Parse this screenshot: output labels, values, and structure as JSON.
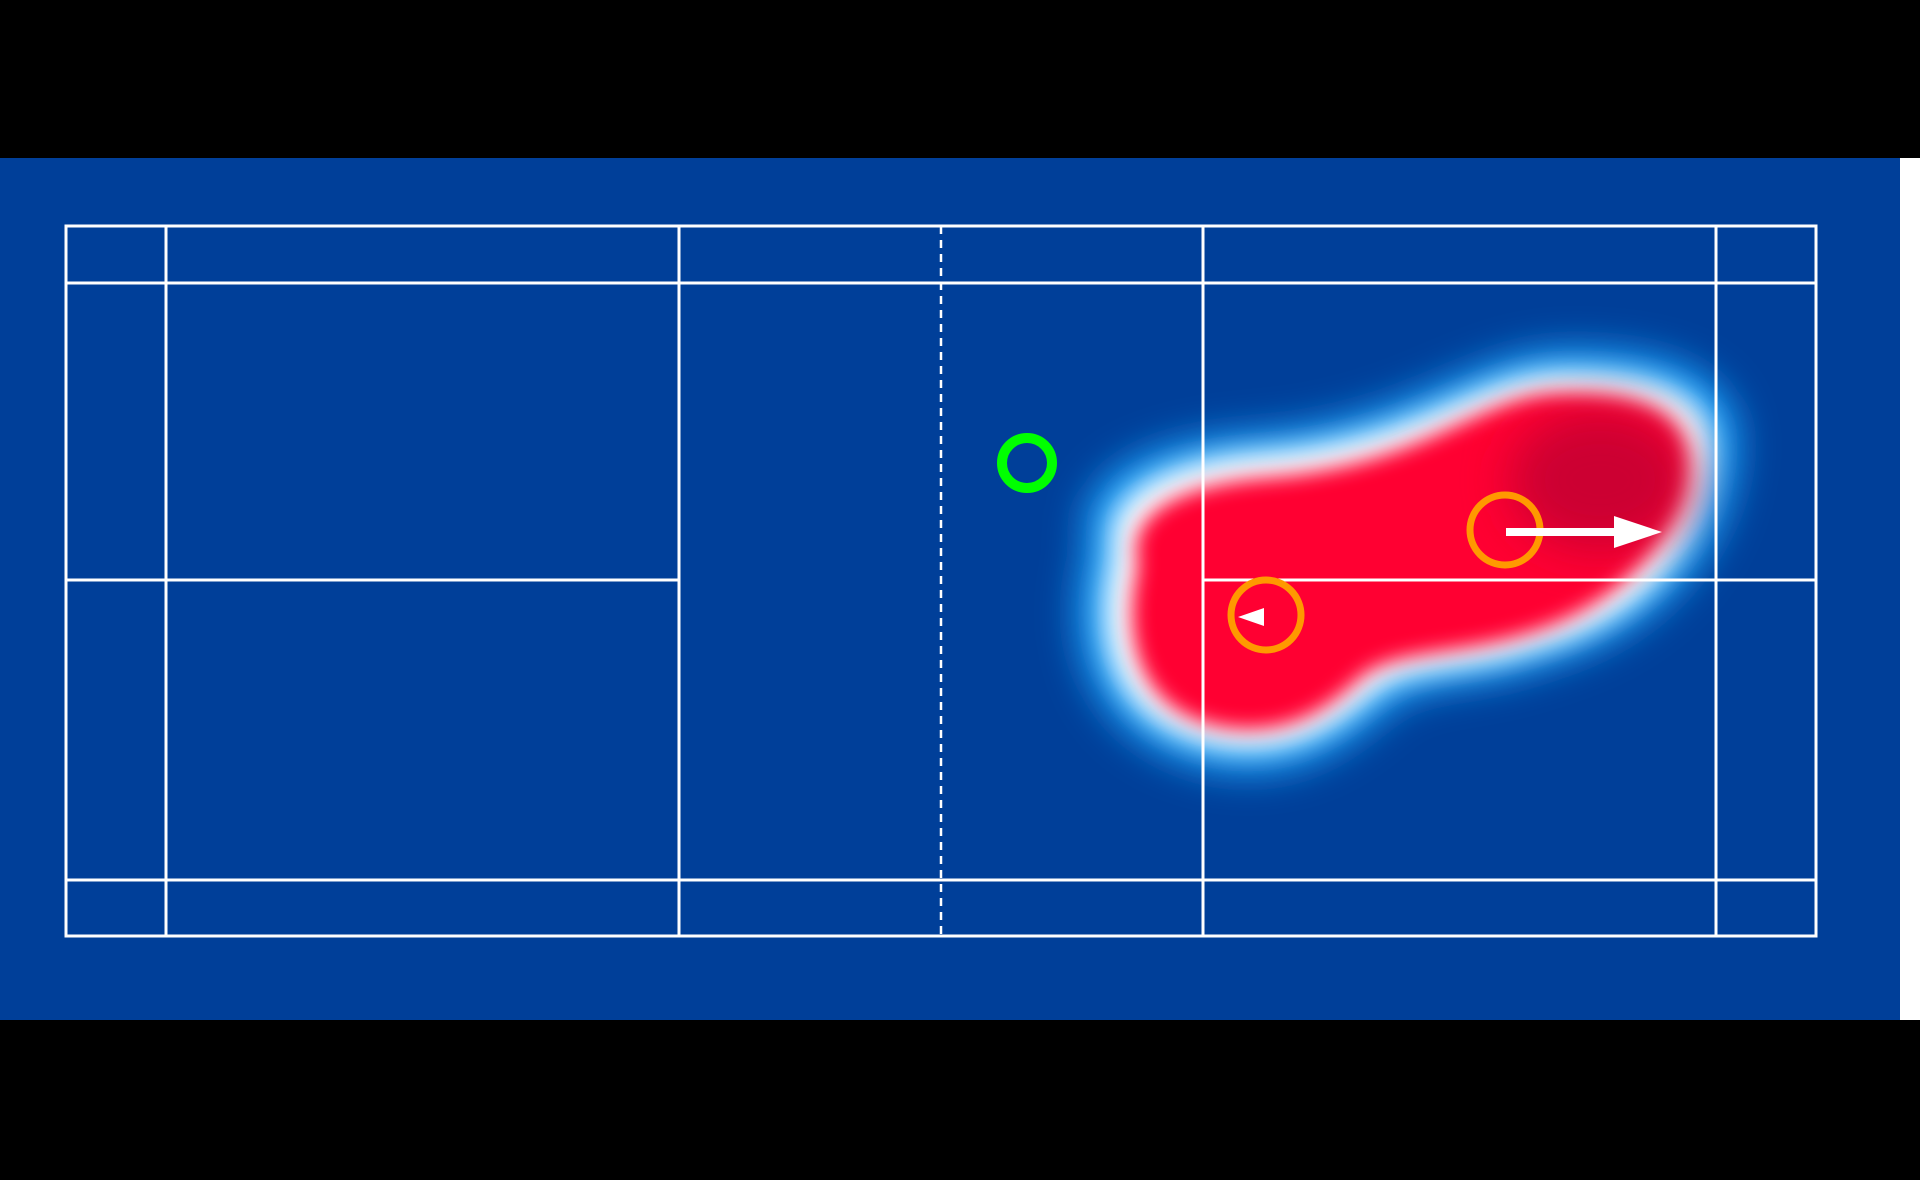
{
  "colors": {
    "background": "#000000",
    "court": "#003f99",
    "court_lines": "#ffffff",
    "right_edge": "#ffffff",
    "heat_core": "#ff0033",
    "heat_peak": "#cc0033",
    "heat_halo": "#ffffff",
    "heat_outer": "#1fa6ff",
    "shuttle_marker": "#00ff00",
    "player_marker": "#ff9900",
    "arrow": "#ffffff"
  },
  "icons": {
    "shuttle_marker": "green-ring-icon",
    "player_marker": "orange-ring-icon",
    "movement_arrow": "arrow-right-icon"
  },
  "players": [
    {
      "id": "player-front",
      "direction": "left"
    },
    {
      "id": "player-back",
      "direction": "right"
    }
  ]
}
